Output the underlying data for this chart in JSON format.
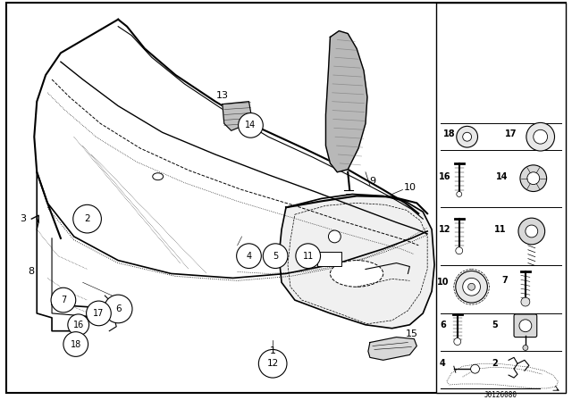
{
  "bg_color": "#ffffff",
  "line_color": "#000000",
  "part_number": "J0126080",
  "fig_width": 6.4,
  "fig_height": 4.48,
  "dpi": 100
}
